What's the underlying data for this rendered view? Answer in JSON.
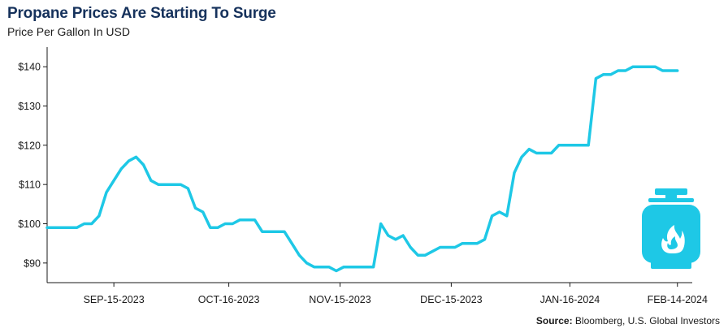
{
  "chart_data": {
    "type": "line",
    "title": "Propane Prices Are Starting To Surge",
    "subtitle": "Price Per Gallon In USD",
    "source_label": "Source:",
    "source_text": "Bloomberg, U.S. Global Investors",
    "xlabel": "",
    "ylabel": "",
    "ylim": [
      85,
      145
    ],
    "y_ticks": [
      90,
      100,
      110,
      120,
      130,
      140
    ],
    "y_tick_labels": [
      "$90",
      "$100",
      "$110",
      "$120",
      "$130",
      "$140"
    ],
    "x_ticks": [
      "2023-09-15",
      "2023-10-16",
      "2023-11-15",
      "2023-12-15",
      "2024-01-16",
      "2024-02-14"
    ],
    "x_tick_labels": [
      "SEP-15-2023",
      "OCT-16-2023",
      "NOV-15-2023",
      "DEC-15-2023",
      "JAN-16-2024",
      "FEB-14-2024"
    ],
    "grid": false,
    "line_color": "#1ec8e6",
    "icon": "propane-tank-icon",
    "series": [
      {
        "x": [
          "2023-08-28",
          "2023-08-30",
          "2023-09-01",
          "2023-09-03",
          "2023-09-05",
          "2023-09-07",
          "2023-09-09",
          "2023-09-11",
          "2023-09-13",
          "2023-09-15",
          "2023-09-17",
          "2023-09-19",
          "2023-09-21",
          "2023-09-23",
          "2023-09-25",
          "2023-09-27",
          "2023-09-29",
          "2023-10-01",
          "2023-10-03",
          "2023-10-05",
          "2023-10-07",
          "2023-10-09",
          "2023-10-11",
          "2023-10-13",
          "2023-10-15",
          "2023-10-17",
          "2023-10-19",
          "2023-10-21",
          "2023-10-23",
          "2023-10-25",
          "2023-10-27",
          "2023-10-29",
          "2023-10-31",
          "2023-11-02",
          "2023-11-04",
          "2023-11-06",
          "2023-11-08",
          "2023-11-10",
          "2023-11-12",
          "2023-11-14",
          "2023-11-16",
          "2023-11-18",
          "2023-11-20",
          "2023-11-22",
          "2023-11-24",
          "2023-11-26",
          "2023-11-28",
          "2023-11-30",
          "2023-12-02",
          "2023-12-04",
          "2023-12-06",
          "2023-12-08",
          "2023-12-10",
          "2023-12-12",
          "2023-12-14",
          "2023-12-16",
          "2023-12-18",
          "2023-12-20",
          "2023-12-22",
          "2023-12-24",
          "2023-12-26",
          "2023-12-28",
          "2023-12-30",
          "2024-01-01",
          "2024-01-03",
          "2024-01-05",
          "2024-01-07",
          "2024-01-09",
          "2024-01-11",
          "2024-01-13",
          "2024-01-15",
          "2024-01-17",
          "2024-01-19",
          "2024-01-21",
          "2024-01-23",
          "2024-01-25",
          "2024-01-27",
          "2024-01-29",
          "2024-01-31",
          "2024-02-02",
          "2024-02-04",
          "2024-02-06",
          "2024-02-08",
          "2024-02-10",
          "2024-02-12",
          "2024-02-14"
        ],
        "values": [
          99,
          99,
          99,
          99,
          99,
          100,
          100,
          102,
          108,
          111,
          114,
          116,
          117,
          115,
          111,
          110,
          110,
          110,
          110,
          109,
          104,
          103,
          99,
          99,
          100,
          100,
          101,
          101,
          101,
          98,
          98,
          98,
          98,
          95,
          92,
          90,
          89,
          89,
          89,
          88,
          89,
          89,
          89,
          89,
          89,
          100,
          97,
          96,
          97,
          94,
          92,
          92,
          93,
          94,
          94,
          94,
          95,
          95,
          95,
          96,
          102,
          103,
          102,
          113,
          117,
          119,
          118,
          118,
          118,
          120,
          120,
          120,
          120,
          120,
          137,
          138,
          138,
          139,
          139,
          140,
          140,
          140,
          140,
          139,
          139,
          139
        ]
      }
    ]
  }
}
